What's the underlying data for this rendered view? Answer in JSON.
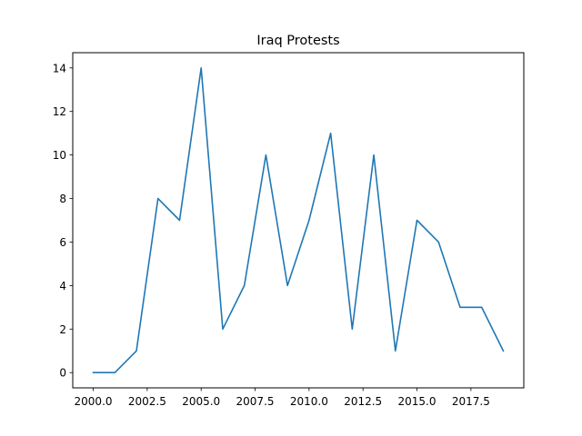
{
  "chart_data": {
    "type": "line",
    "title": "Iraq Protests",
    "xlabel": "",
    "ylabel": "",
    "x": [
      2000,
      2001,
      2002,
      2003,
      2004,
      2005,
      2006,
      2007,
      2008,
      2009,
      2010,
      2011,
      2012,
      2013,
      2014,
      2015,
      2016,
      2017,
      2018,
      2019
    ],
    "series": [
      {
        "values": [
          0,
          0,
          1,
          8,
          7,
          14,
          2,
          4,
          10,
          4,
          7,
          11,
          2,
          10,
          1,
          7,
          6,
          3,
          3,
          1
        ]
      }
    ],
    "xlim": [
      1999.05,
      2019.95
    ],
    "ylim": [
      -0.7,
      14.7
    ],
    "xticks": [
      2000.0,
      2002.5,
      2005.0,
      2007.5,
      2010.0,
      2012.5,
      2015.0,
      2017.5
    ],
    "xtick_labels": [
      "2000.0",
      "2002.5",
      "2005.0",
      "2007.5",
      "2010.0",
      "2012.5",
      "2015.0",
      "2017.5"
    ],
    "yticks": [
      0,
      2,
      4,
      6,
      8,
      10,
      12,
      14
    ],
    "ytick_labels": [
      "0",
      "2",
      "4",
      "6",
      "8",
      "10",
      "12",
      "14"
    ],
    "grid": false,
    "legend": "none",
    "line_color": "#1f77b4"
  }
}
